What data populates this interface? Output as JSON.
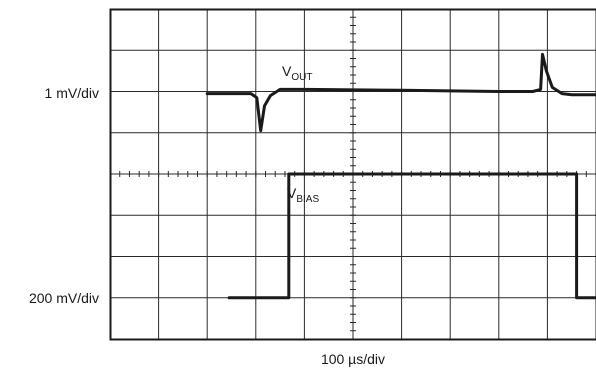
{
  "chart_data": {
    "type": "line",
    "plot": {
      "x_divisions": 10,
      "y_divisions": 8,
      "grid": true,
      "center_axes_ticks": true
    },
    "labels": {
      "x_scale": "100 µs/div",
      "ch1_scale": "1 mV/div",
      "ch2_scale": "200 mV/div"
    },
    "series": [
      {
        "name_main": "V",
        "name_sub": "OUT",
        "color": "#1a1a1a",
        "x": [
          2.0,
          2.9,
          3.02,
          3.1,
          3.18,
          3.3,
          3.5,
          4.0,
          6.0,
          8.0,
          8.7,
          8.86,
          8.9,
          8.98,
          9.1,
          9.3,
          9.5,
          10.0
        ],
        "y": [
          5.95,
          5.95,
          5.85,
          5.05,
          5.65,
          5.9,
          6.05,
          6.05,
          6.03,
          6.0,
          6.0,
          6.05,
          6.9,
          6.5,
          6.1,
          5.95,
          5.92,
          5.92
        ]
      },
      {
        "name_main": "V",
        "name_sub": "BIAS",
        "color": "#1a1a1a",
        "x": [
          2.45,
          3.68,
          3.68,
          9.6,
          9.6,
          12.0
        ],
        "y": [
          1.0,
          1.0,
          4.0,
          4.0,
          1.0,
          1.0
        ]
      }
    ]
  }
}
